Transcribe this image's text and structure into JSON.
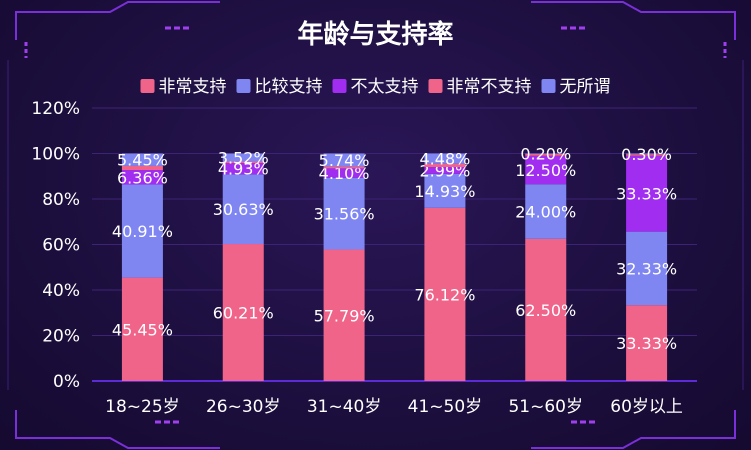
{
  "chart_data": {
    "type": "bar",
    "stacked": true,
    "title": "年龄与支持率",
    "categories": [
      "18~25岁",
      "26~30岁",
      "31~40岁",
      "41~50岁",
      "51~60岁",
      "60岁以上"
    ],
    "series": [
      {
        "name": "非常支持",
        "color": "#f0648a",
        "values": [
          45.45,
          60.21,
          57.79,
          76.12,
          62.5,
          33.33
        ],
        "labels": [
          "45.45%",
          "60.21%",
          "57.79%",
          "76.12%",
          "62.50%",
          "33.33%"
        ]
      },
      {
        "name": "比较支持",
        "color": "#7f86f2",
        "values": [
          40.91,
          30.63,
          31.56,
          14.93,
          24.0,
          32.33
        ],
        "labels": [
          "40.91%",
          "30.63%",
          "31.56%",
          "14.93%",
          "24.00%",
          "32.33%"
        ]
      },
      {
        "name": "不太支持",
        "color": "#a12df0",
        "values": [
          6.36,
          4.93,
          4.1,
          2.99,
          12.5,
          33.33
        ],
        "labels": [
          "6.36%",
          "4.93%",
          "4.10%",
          "2.99%",
          "12.50%",
          "33.33%"
        ]
      },
      {
        "name": "非常不支持",
        "color": "#f0648a",
        "values": [
          1.82,
          0.7,
          0.82,
          1.49,
          0.8,
          0.7
        ],
        "labels": [
          "",
          "",
          "",
          "",
          "",
          ""
        ]
      },
      {
        "name": "无所谓",
        "color": "#7f86f2",
        "values": [
          5.45,
          3.52,
          5.74,
          4.48,
          0.2,
          0.3
        ],
        "labels": [
          "5.45%",
          "3.52%",
          "5.74%",
          "4.48%",
          "0.20%",
          "0.30%"
        ]
      }
    ],
    "y_ticks": [
      "0%",
      "20%",
      "40%",
      "60%",
      "80%",
      "100%",
      "120%"
    ],
    "ylim": [
      0,
      120
    ],
    "grid": true,
    "legend": "top"
  }
}
